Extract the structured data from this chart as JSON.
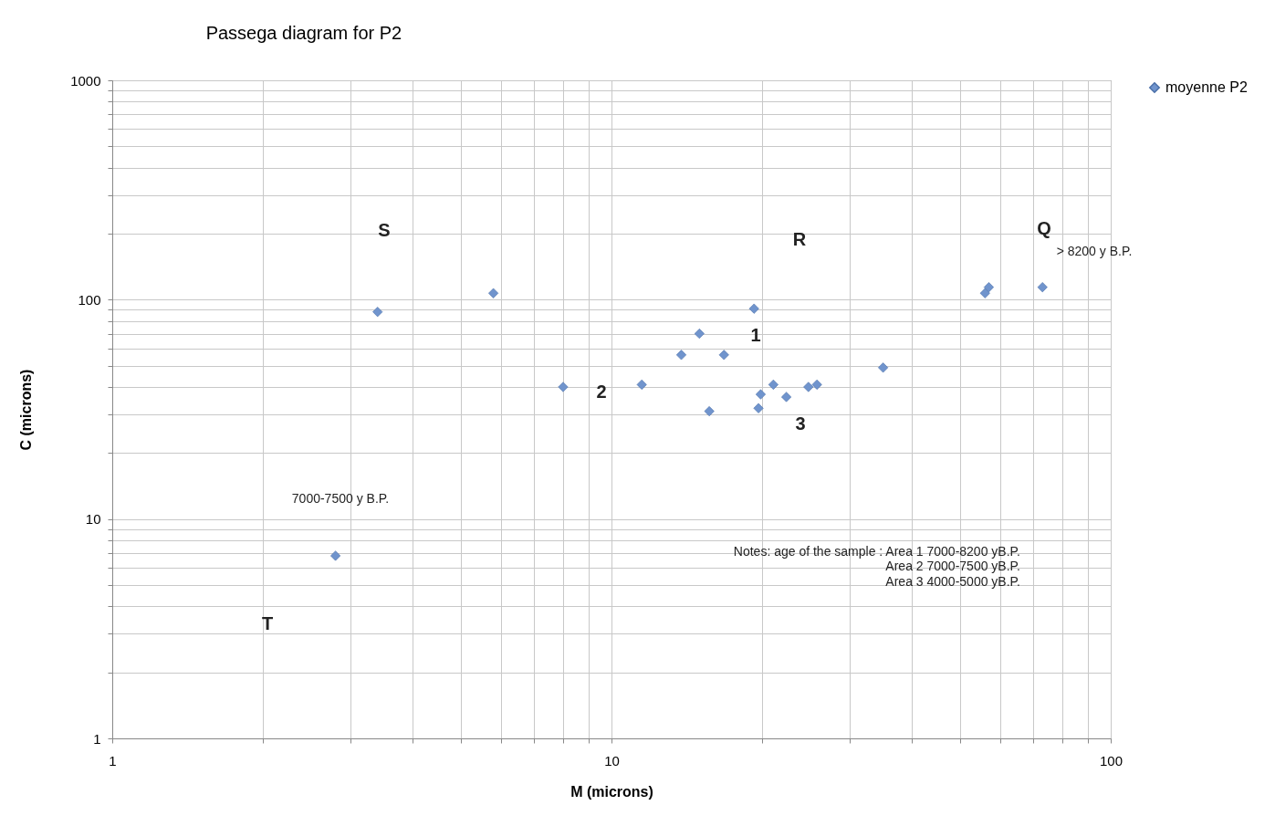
{
  "chart_data": {
    "type": "scatter",
    "title": "Passega diagram for P2",
    "xlabel": "M (microns)",
    "ylabel": "C (microns)",
    "log": "xy",
    "grid": true,
    "legend": "right",
    "marker": "diamond",
    "xlim": [
      1,
      100
    ],
    "ylim": [
      1,
      1000
    ],
    "xticks": [
      1,
      {
        "value": 2,
        "label": null
      },
      {
        "value": 3,
        "label": null
      },
      {
        "value": 4,
        "label": null
      },
      {
        "value": 5,
        "label": null
      },
      {
        "value": 6,
        "label": null
      },
      {
        "value": 7,
        "label": null
      },
      {
        "value": 8,
        "label": null
      },
      {
        "value": 9,
        "label": null
      },
      10,
      {
        "value": 20,
        "label": null
      },
      {
        "value": 30,
        "label": null
      },
      {
        "value": 40,
        "label": null
      },
      {
        "value": 50,
        "label": null
      },
      {
        "value": 60,
        "label": null
      },
      {
        "value": 70,
        "label": null
      },
      {
        "value": 80,
        "label": null
      },
      {
        "value": 90,
        "label": null
      },
      100
    ],
    "yticks": [
      1,
      {
        "value": 2,
        "label": null
      },
      {
        "value": 3,
        "label": null
      },
      {
        "value": 4,
        "label": null
      },
      {
        "value": 5,
        "label": null
      },
      {
        "value": 6,
        "label": null
      },
      {
        "value": 7,
        "label": null
      },
      {
        "value": 8,
        "label": null
      },
      {
        "value": 9,
        "label": null
      },
      10,
      {
        "value": 20,
        "label": null
      },
      {
        "value": 30,
        "label": null
      },
      {
        "value": 40,
        "label": null
      },
      {
        "value": 50,
        "label": null
      },
      {
        "value": 60,
        "label": null
      },
      {
        "value": 70,
        "label": null
      },
      {
        "value": 80,
        "label": null
      },
      {
        "value": 90,
        "label": null
      },
      100,
      {
        "value": 200,
        "label": null
      },
      {
        "value": 300,
        "label": null
      },
      {
        "value": 400,
        "label": null
      },
      {
        "value": 500,
        "label": null
      },
      {
        "value": 600,
        "label": null
      },
      {
        "value": 700,
        "label": null
      },
      {
        "value": 800,
        "label": null
      },
      {
        "value": 900,
        "label": null
      },
      1000
    ],
    "series": [
      {
        "name": "moyenne P2",
        "color": "#7094cd",
        "x": [
          3.4,
          5.8,
          8.0,
          11.5,
          15.7,
          13.8,
          15.0,
          16.8,
          19.3,
          19.9,
          19.7,
          21.1,
          22.4,
          24.8,
          25.8,
          35,
          56,
          57,
          73,
          2.8
        ],
        "values": [
          88,
          107,
          40,
          41,
          31,
          56,
          70,
          56,
          91,
          37,
          32,
          41,
          36,
          40,
          41,
          49,
          107,
          114,
          114,
          6.8
        ]
      }
    ],
    "annotations": [
      "S",
      "R",
      "Q",
      "T",
      "1",
      "2",
      "3",
      "7000-7500 y B.P.",
      "> 8200 y B.P.",
      "Notes: age of the sample : Area 1 7000-8200 yB.P.",
      "Area 2 7000-7500 yB.P.",
      "Area 3 4000-5000 yB.P."
    ]
  }
}
